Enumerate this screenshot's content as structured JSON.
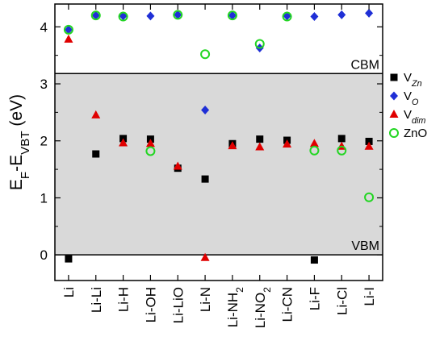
{
  "chart_data": {
    "type": "scatter",
    "title": "",
    "xlabel": "",
    "ylabel": {
      "main": "E",
      "sub1": "F",
      "mid": "-E",
      "sub2": "VBT",
      "unit": " (eV)"
    },
    "categories": [
      {
        "base": "Li"
      },
      {
        "base": "Li-Li"
      },
      {
        "base": "Li-H"
      },
      {
        "base": "Li-OH"
      },
      {
        "base": "Li-LiO"
      },
      {
        "base": "Li-N"
      },
      {
        "base": "Li-NH",
        "sub": "2"
      },
      {
        "base": "Li-NO",
        "sub": "2"
      },
      {
        "base": "Li-CN"
      },
      {
        "base": "Li-F"
      },
      {
        "base": "Li-Cl"
      },
      {
        "base": "Li-I"
      }
    ],
    "ylim": [
      -0.45,
      4.4
    ],
    "yticks": [
      "0",
      "1",
      "2",
      "3",
      "4"
    ],
    "shaded_band": {
      "from": 0,
      "to": 3.18,
      "color": "#d9d9d9"
    },
    "band_labels": {
      "cbm": "CBM",
      "vbm": "VBM"
    },
    "series": [
      {
        "name": {
          "base": "V",
          "sub": "Zn"
        },
        "marker": "square",
        "color": "#000000",
        "values": [
          -0.07,
          1.77,
          2.04,
          2.03,
          1.52,
          1.33,
          1.95,
          2.03,
          2.01,
          -0.09,
          2.04,
          1.99
        ]
      },
      {
        "name": {
          "base": "V",
          "sub": "O"
        },
        "marker": "diamond",
        "color": "#1f2fd6",
        "values": [
          3.95,
          4.2,
          4.19,
          4.19,
          4.21,
          2.54,
          4.2,
          3.63,
          4.19,
          4.18,
          4.21,
          4.24
        ]
      },
      {
        "name": {
          "base": "V",
          "sub": "dim"
        },
        "marker": "triangle",
        "color": "#e00000",
        "values": [
          3.78,
          2.45,
          1.96,
          1.95,
          1.55,
          -0.05,
          1.91,
          1.89,
          1.94,
          1.95,
          1.9,
          1.9
        ]
      },
      {
        "name": {
          "base": "ZnO"
        },
        "marker": "circle-open",
        "color": "#22d622",
        "values": [
          3.95,
          4.2,
          4.18,
          1.82,
          4.21,
          3.52,
          4.2,
          3.7,
          4.18,
          1.83,
          1.83,
          1.01
        ]
      }
    ],
    "legend_position": "right"
  }
}
